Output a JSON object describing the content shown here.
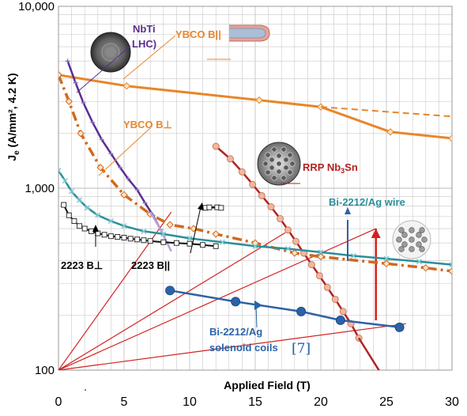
{
  "chart_data": {
    "type": "line",
    "x_scale": "linear",
    "y_scale": "log",
    "xlim": [
      0,
      30
    ],
    "ylim": [
      100,
      10000
    ],
    "grid": true,
    "xlabel": "Applied Field (T)",
    "ylabel": "J_e (A/mm², 4.2 K)",
    "ylabel_main": "J",
    "ylabel_sub": "e",
    "ylabel_rest": " (A/mm², 4.2 K)",
    "x_ticks": [
      0,
      5,
      10,
      15,
      20,
      25,
      30
    ],
    "x_tick_labels": [
      "0",
      "5",
      "10",
      "15",
      "20",
      "25",
      "30"
    ],
    "y_ticks": [
      100,
      1000,
      10000
    ],
    "y_tick_labels": [
      "100",
      "1,000",
      "10,000"
    ],
    "colors": {
      "ybco": "#e8862a",
      "nbti": "#5a2d91",
      "nbti_light": "#b9a3d6",
      "nb3sn": "#b22222",
      "nb3sn_marker": "#f0b89b",
      "bi_wire": "#2a8f99",
      "bi_coil": "#2c63a8",
      "bscco2223": "#222222",
      "guide_lines": "#d42020",
      "grid": "#c8c8c8"
    },
    "series": [
      {
        "name": "YBCO B||",
        "style": "solid",
        "marker": "diamond",
        "x": [
          0,
          5.2,
          15.3,
          20.0,
          25.3,
          30.0
        ],
        "y": [
          4200,
          3650,
          3050,
          2800,
          2040,
          1880
        ]
      },
      {
        "name": "",
        "style": "dashed",
        "x": [
          20.0,
          30.0
        ],
        "y": [
          2800,
          2480
        ]
      },
      {
        "name": "YBCO B⊥",
        "style": "dashdot",
        "marker": "diamond",
        "x": [
          0,
          0.8,
          1.7,
          3.2,
          5.0,
          7.0,
          8.5,
          10.3,
          12.0,
          15.0,
          18.0,
          20.0,
          25.0,
          28.0,
          30.0
        ],
        "y": [
          4200,
          3000,
          2000,
          1300,
          920,
          720,
          630,
          600,
          560,
          500,
          440,
          420,
          385,
          365,
          350
        ]
      },
      {
        "name": "NbTi LHC",
        "style": "solid",
        "marker": "plus",
        "x": [
          0.7,
          1.3,
          1.9,
          2.6,
          3.3,
          4.0,
          4.7,
          5.3,
          6.0,
          6.6,
          7.2,
          7.8
        ],
        "y": [
          5000,
          3800,
          2950,
          2300,
          1850,
          1550,
          1300,
          1130,
          980,
          830,
          710,
          590
        ]
      },
      {
        "name": "",
        "style": "solid",
        "x": [
          7.0,
          7.8,
          8.6
        ],
        "y": [
          740,
          590,
          450
        ]
      },
      {
        "name": "RRP Nb3Sn",
        "style": "solid",
        "marker": "circle",
        "x": [
          12.0,
          13.1,
          14.0,
          14.8,
          15.5,
          16.2,
          16.9,
          17.5,
          18.1,
          18.7,
          19.3,
          19.9,
          20.5,
          21.1,
          21.7,
          22.3,
          22.9
        ],
        "y": [
          1700,
          1450,
          1230,
          1050,
          910,
          790,
          680,
          590,
          510,
          440,
          380,
          330,
          285,
          245,
          210,
          180,
          150
        ]
      },
      {
        "name": "",
        "style": "solid",
        "x": [
          22.9,
          24.5
        ],
        "y": [
          150,
          98
        ]
      },
      {
        "name": "Bi-2212/Ag wire",
        "style": "solid",
        "marker": "x",
        "x": [
          0,
          0.5,
          1.0,
          1.6,
          2.2,
          3.0,
          4.0,
          5.0,
          6.5,
          8.0,
          10.0,
          12.5,
          15.0,
          17.5,
          20.0,
          22.5,
          25.0,
          27.5,
          30.0
        ],
        "y": [
          1250,
          1100,
          960,
          860,
          780,
          710,
          660,
          620,
          580,
          560,
          530,
          505,
          480,
          465,
          445,
          425,
          410,
          395,
          380
        ]
      },
      {
        "name": "2223 B⊥",
        "style": "solid",
        "marker": "square",
        "x": [
          0.4,
          0.8,
          1.2,
          1.6,
          2.0,
          2.5,
          3.0,
          3.5,
          4.0,
          4.5,
          5.0,
          5.5,
          6.0,
          6.5,
          7.0,
          8.0,
          9.0,
          10.0,
          11.0,
          12.0
        ],
        "y": [
          810,
          710,
          660,
          620,
          600,
          580,
          565,
          555,
          545,
          540,
          535,
          528,
          523,
          518,
          513,
          505,
          500,
          495,
          488,
          480
        ]
      },
      {
        "name": "2223 B||",
        "style": "solid",
        "marker": "square",
        "x": [
          11.2,
          11.5,
          12.1,
          12.4
        ],
        "y": [
          780,
          785,
          785,
          780
        ]
      },
      {
        "name": "Bi-2212/Ag solenoid coils",
        "style": "solid",
        "marker": "circle",
        "x": [
          8.5,
          13.5,
          18.5,
          21.5,
          26.0
        ],
        "y": [
          274,
          238,
          210,
          188,
          172
        ]
      }
    ],
    "annotations": [
      {
        "text": "NbTi",
        "text2": "LHC)"
      },
      {
        "text": "YBCO B||"
      },
      {
        "text": "YBCO B⊥"
      },
      {
        "text": "RRP Nb",
        "sub": "3",
        "tail": "Sn"
      },
      {
        "text": "Bi-2212/Ag wire"
      },
      {
        "text": "2223 B⊥"
      },
      {
        "text": "2223 B||"
      },
      {
        "text": "Bi-2212/Ag",
        "text2": "solenoid coils",
        "ref": "[7]"
      }
    ]
  }
}
